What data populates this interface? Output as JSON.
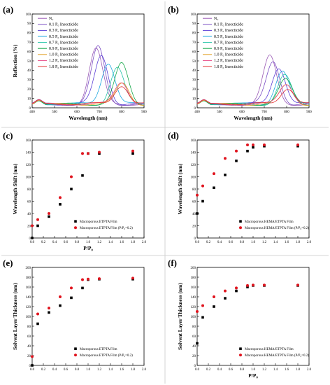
{
  "colors": {
    "N2": "#9a59b5",
    "0.1": "#7b4fc4",
    "0.3": "#5b3fd6",
    "0.5": "#1fa8e0",
    "0.7": "#23c4a8",
    "0.9": "#17a84a",
    "1.0": "#e0a020",
    "1.2": "#e8508a",
    "1.8": "#e53030",
    "film": "#000000",
    "pp02": "#e0141e"
  },
  "chart_data": [
    {
      "panel": "(a)",
      "type": "line",
      "xlabel": "Wavelength (nm)",
      "ylabel": "Reflection (%)",
      "xlim": [
        400,
        900
      ],
      "ylim": [
        0,
        100
      ],
      "xticks": [
        "400",
        "500",
        "600",
        "700",
        "800",
        "900"
      ],
      "yticks": [
        "0",
        "10",
        "20",
        "30",
        "40",
        "50",
        "60",
        "70",
        "80",
        "90",
        "100"
      ],
      "legend": [
        "N₂",
        "0.1 P₀ Insecticide",
        "0.3 P₀ Insecticide",
        "0.5 P₀ Insecticide",
        "0.7 P₀ Insecticide",
        "0.9 P₀ Insecticide",
        "1.0 P₀ Insecticide",
        "1.2 P₀ Insecticide",
        "1.8 P₀ Insecticide"
      ],
      "series": [
        {
          "peak": 685,
          "height": 58,
          "width": 30
        },
        {
          "peak": 695,
          "height": 60,
          "width": 30
        },
        {
          "peak": 710,
          "height": 52,
          "width": 30
        },
        {
          "peak": 740,
          "height": 45,
          "width": 30
        },
        {
          "peak": 780,
          "height": 38,
          "width": 30
        },
        {
          "peak": 800,
          "height": 42,
          "width": 30
        },
        {
          "peak": 805,
          "height": 22,
          "width": 30
        },
        {
          "peak": 800,
          "height": 24,
          "width": 30
        },
        {
          "peak": 800,
          "height": 21,
          "width": 30
        }
      ]
    },
    {
      "panel": "(b)",
      "type": "line",
      "xlabel": "Wavelength (nm)",
      "ylabel": "",
      "xlim": [
        400,
        900
      ],
      "ylim": [
        0,
        100
      ],
      "xticks": [
        "400",
        "500",
        "600",
        "700",
        "800",
        "900"
      ],
      "yticks": [
        "0",
        "10",
        "20",
        "30",
        "40",
        "50",
        "60",
        "70",
        "80",
        "90",
        "100"
      ],
      "legend": [
        "N₂",
        "0.1 P₀ Insecticide",
        "0.3 P₀ Insecticide",
        "0.5 P₀ Insecticide",
        "0.7 P₀ Insecticide",
        "0.9 P₀ Insecticide",
        "1.0 P₀ Insecticide",
        "1.2 P₀ Insecticide",
        "1.8 P₀ Insecticide"
      ],
      "series": [
        {
          "peak": 725,
          "height": 50,
          "width": 30
        },
        {
          "peak": 740,
          "height": 45,
          "width": 30
        },
        {
          "peak": 765,
          "height": 40,
          "width": 30
        },
        {
          "peak": 780,
          "height": 36,
          "width": 30
        },
        {
          "peak": 790,
          "height": 30,
          "width": 30
        },
        {
          "peak": 795,
          "height": 25,
          "width": 30
        },
        {
          "peak": 800,
          "height": 20,
          "width": 30
        },
        {
          "peak": 800,
          "height": 22,
          "width": 30
        },
        {
          "peak": 805,
          "height": 18,
          "width": 30
        }
      ]
    },
    {
      "panel": "(c)",
      "type": "scatter",
      "xlabel": "P/P₀",
      "ylabel": "Wavelength Shift (nm)",
      "xlim": [
        0,
        2.0
      ],
      "ylim": [
        0,
        160
      ],
      "xticks": [
        "0.0",
        "0.2",
        "0.4",
        "0.6",
        "0.8",
        "1.0",
        "1.2",
        "1.4",
        "1.6",
        "1.8",
        "2.0"
      ],
      "yticks": [
        "0",
        "20",
        "40",
        "60",
        "80",
        "100",
        "120",
        "140",
        "160"
      ],
      "legend": [
        "Macroporous ETPTA Film",
        "Macroporous ETPTA Film (P/P₀=0.2)"
      ],
      "series": [
        {
          "x": [
            0,
            0.1,
            0.3,
            0.5,
            0.7,
            0.9,
            1.0,
            1.2,
            1.8
          ],
          "y": [
            0,
            20,
            35,
            55,
            80,
            102,
            138,
            138,
            138
          ]
        },
        {
          "x": [
            0,
            0.1,
            0.3,
            0.5,
            0.7,
            0.9,
            1.0,
            1.2,
            1.8
          ],
          "y": [
            20,
            30,
            40,
            66,
            100,
            138,
            138,
            140,
            142
          ]
        }
      ]
    },
    {
      "panel": "(d)",
      "type": "scatter",
      "xlabel": "",
      "ylabel": "Wavelength Shift (nm)",
      "xlim": [
        0,
        2.0
      ],
      "ylim": [
        0,
        160
      ],
      "xticks": [
        "0.0",
        "0.2",
        "0.4",
        "0.6",
        "0.8",
        "1.0",
        "1.2",
        "1.4",
        "1.6",
        "1.8",
        "2.0"
      ],
      "yticks": [
        "0",
        "20",
        "40",
        "60",
        "80",
        "100",
        "120",
        "140",
        "160"
      ],
      "legend": [
        "Macroporous HEMA/ETPTA Film",
        "Macroporous HEMA/ETPTA Film (P/P₀=0.2)"
      ],
      "series": [
        {
          "x": [
            0,
            0.1,
            0.3,
            0.5,
            0.7,
            0.9,
            1.0,
            1.2,
            1.8
          ],
          "y": [
            40,
            60,
            82,
            103,
            126,
            142,
            148,
            150,
            150
          ]
        },
        {
          "x": [
            0,
            0.1,
            0.3,
            0.5,
            0.7,
            0.9,
            1.0,
            1.2,
            1.8
          ],
          "y": [
            70,
            85,
            105,
            130,
            142,
            152,
            152,
            152,
            152
          ]
        }
      ]
    },
    {
      "panel": "(e)",
      "type": "scatter",
      "xlabel": "",
      "ylabel": "Solvent Layer Thickness (nm)",
      "xlim": [
        0,
        2.0
      ],
      "ylim": [
        0,
        200
      ],
      "xticks": [
        "0.0",
        "0.2",
        "0.4",
        "0.6",
        "0.8",
        "1.0",
        "1.2",
        "1.4",
        "1.6",
        "1.8",
        "2.0"
      ],
      "yticks": [
        "0",
        "20",
        "40",
        "60",
        "80",
        "100",
        "120",
        "140",
        "160",
        "180",
        "200"
      ],
      "legend": [
        "Macroporous ETPTA Film",
        "Macroporous ETPTA Film (P/P₀=0.2)"
      ],
      "series": [
        {
          "x": [
            0,
            0.1,
            0.3,
            0.5,
            0.7,
            0.9,
            1.0,
            1.2,
            1.8
          ],
          "y": [
            0,
            85,
            108,
            122,
            138,
            158,
            175,
            176,
            176
          ]
        },
        {
          "x": [
            0,
            0.1,
            0.3,
            0.5,
            0.7,
            0.9,
            1.0,
            1.2,
            1.8
          ],
          "y": [
            18,
            105,
            117,
            140,
            158,
            175,
            176,
            177,
            178
          ]
        }
      ]
    },
    {
      "panel": "(f)",
      "type": "scatter",
      "xlabel": "P/P₀",
      "ylabel": "Solvent Layer Thickness (nm)",
      "xlim": [
        0,
        2.0
      ],
      "ylim": [
        0,
        200
      ],
      "xticks": [
        "0.0",
        "0.2",
        "0.4",
        "0.6",
        "0.8",
        "1.0",
        "1.2",
        "1.4",
        "1.6",
        "1.8",
        "2.0"
      ],
      "yticks": [
        "0",
        "20",
        "40",
        "60",
        "80",
        "100",
        "120",
        "140",
        "160",
        "180",
        "200"
      ],
      "legend": [
        "Macroporous HEMA/ETPTA Film",
        "Macroporous HEMA/ETPTA Film (P/P₀=0.2)"
      ],
      "series": [
        {
          "x": [
            0,
            0.1,
            0.3,
            0.5,
            0.7,
            0.9,
            1.0,
            1.2,
            1.8
          ],
          "y": [
            45,
            98,
            120,
            137,
            152,
            160,
            163,
            163,
            163
          ]
        },
        {
          "x": [
            0,
            0.1,
            0.3,
            0.5,
            0.7,
            0.9,
            1.0,
            1.2,
            1.8
          ],
          "y": [
            110,
            122,
            140,
            152,
            158,
            163,
            164,
            164,
            164
          ]
        }
      ]
    }
  ]
}
